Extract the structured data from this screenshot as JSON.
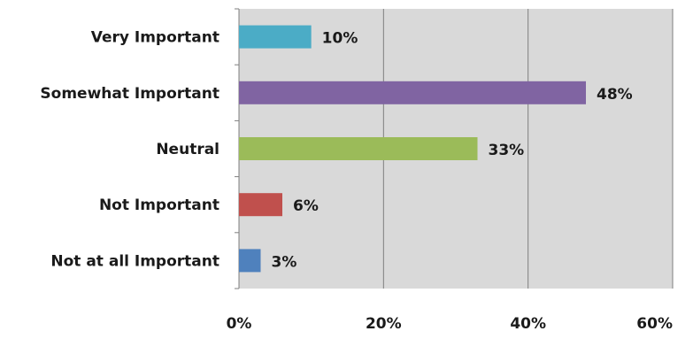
{
  "chart_data": {
    "type": "bar",
    "orientation": "horizontal",
    "categories": [
      "Very Important",
      "Somewhat Important",
      "Neutral",
      "Not Important",
      "Not at all Important"
    ],
    "values": [
      10,
      48,
      33,
      6,
      3
    ],
    "value_labels": [
      "10%",
      "48%",
      "33%",
      "6%",
      "3%"
    ],
    "bar_colors": [
      "#4bacc6",
      "#8064a2",
      "#9bbb59",
      "#c0504d",
      "#4f81bd"
    ],
    "xlim": [
      0,
      60
    ],
    "x_ticks": [
      0,
      20,
      40,
      60
    ],
    "x_tick_labels": [
      "0%",
      "20%",
      "40%",
      "60%"
    ],
    "title": "",
    "xlabel": "",
    "ylabel": "",
    "grid": true,
    "plot_background": "#d9d9d9",
    "grid_color": "#7f7f7f",
    "legend": "none"
  }
}
